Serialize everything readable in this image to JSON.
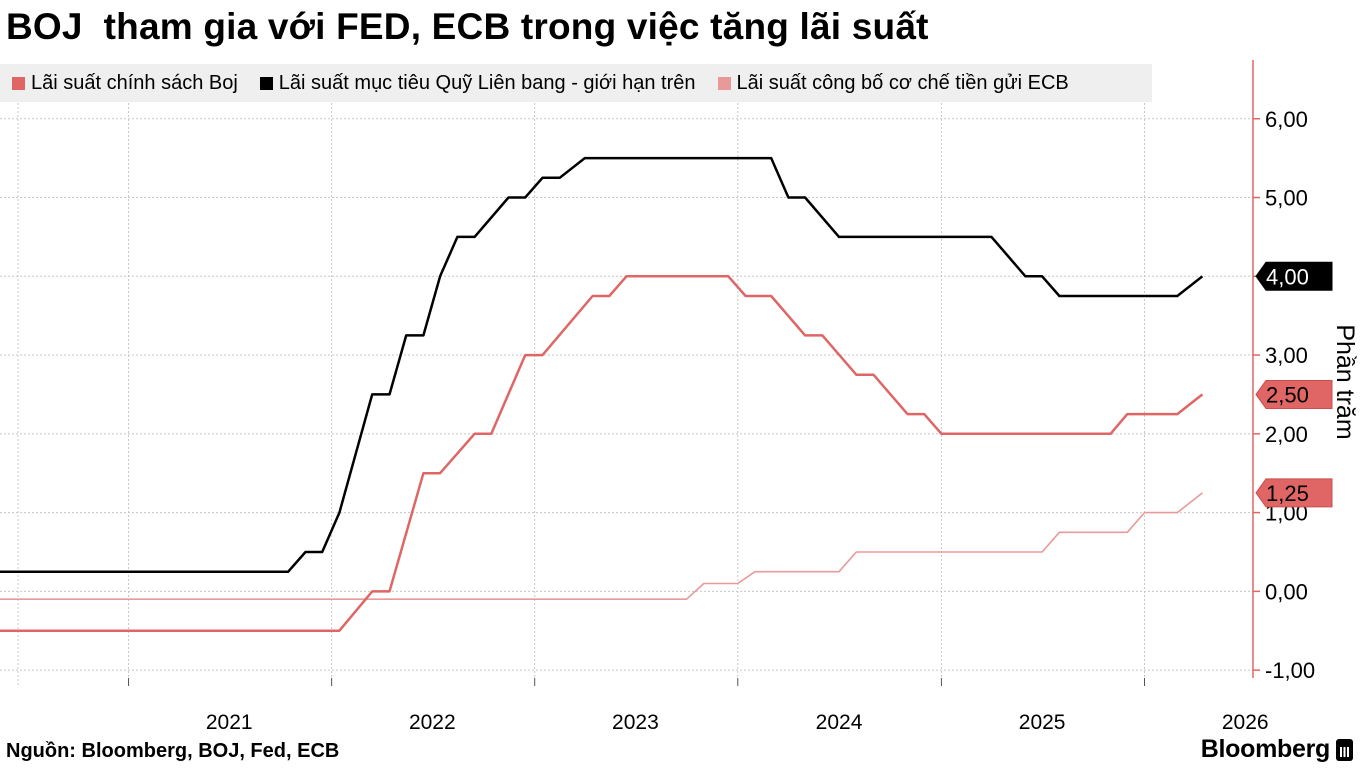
{
  "header": {
    "title": "BOJ  tham gia với FED, ECB trong việc tăng lãi suất"
  },
  "footer": {
    "source": "Nguồn: Bloomberg, BOJ, Fed, ECB",
    "brand": "Bloomberg"
  },
  "colors": {
    "boj": "#e06666",
    "fed": "#000000",
    "ecb": "#e89a9a",
    "axis": "#e06666",
    "grid": "#c8c8c8",
    "legend_bg": "#efefef"
  },
  "chart_data": {
    "type": "line",
    "title": "BOJ  tham gia với FED, ECB trong việc tăng lãi suất",
    "ylabel": "Phần trăm",
    "xlabel": "",
    "ylim": [
      -1.1,
      6.2
    ],
    "y_ticks": [
      -1,
      0,
      1,
      2,
      3,
      4,
      5,
      6
    ],
    "y_tick_labels": [
      "-1,00",
      "0,00",
      "1,00",
      "2,00",
      "3,00",
      "4,00",
      "5,00",
      "6,00"
    ],
    "x_ticks": [
      "2021",
      "2022",
      "2023",
      "2024",
      "2025",
      "2026"
    ],
    "xlim": [
      "2020-05-15",
      "2026-07-15"
    ],
    "legend_position": "top-left",
    "grid": true,
    "series": [
      {
        "name": "Lãi suất chính sách Boj",
        "key": "boj",
        "last_label": "2,50",
        "points": [
          [
            "2020-05-15",
            -0.5
          ],
          [
            "2022-01-15",
            -0.5
          ],
          [
            "2022-03-15",
            0.0
          ],
          [
            "2022-04-15",
            0.0
          ],
          [
            "2022-06-15",
            1.5
          ],
          [
            "2022-07-15",
            1.5
          ],
          [
            "2022-09-15",
            2.0
          ],
          [
            "2022-10-15",
            2.0
          ],
          [
            "2022-12-15",
            3.0
          ],
          [
            "2023-01-15",
            3.0
          ],
          [
            "2023-04-15",
            3.75
          ],
          [
            "2023-05-15",
            3.75
          ],
          [
            "2023-06-15",
            4.0
          ],
          [
            "2023-12-15",
            4.0
          ],
          [
            "2024-01-15",
            3.75
          ],
          [
            "2024-03-01",
            3.75
          ],
          [
            "2024-05-01",
            3.25
          ],
          [
            "2024-06-01",
            3.25
          ],
          [
            "2024-08-01",
            2.75
          ],
          [
            "2024-09-01",
            2.75
          ],
          [
            "2024-11-01",
            2.25
          ],
          [
            "2024-12-01",
            2.25
          ],
          [
            "2025-01-01",
            2.0
          ],
          [
            "2025-11-01",
            2.0
          ],
          [
            "2025-12-01",
            2.25
          ],
          [
            "2026-03-01",
            2.25
          ],
          [
            "2026-04-15",
            2.5
          ]
        ]
      },
      {
        "name": "Lãi suất mục tiêu Quỹ Liên bang - giới hạn trên",
        "key": "fed",
        "last_label": "4,00",
        "points": [
          [
            "2020-05-15",
            0.25
          ],
          [
            "2021-10-15",
            0.25
          ],
          [
            "2021-11-15",
            0.5
          ],
          [
            "2021-12-15",
            0.5
          ],
          [
            "2022-01-15",
            1.0
          ],
          [
            "2022-03-15",
            2.5
          ],
          [
            "2022-04-15",
            2.5
          ],
          [
            "2022-05-15",
            3.25
          ],
          [
            "2022-06-15",
            3.25
          ],
          [
            "2022-07-15",
            4.0
          ],
          [
            "2022-08-15",
            4.5
          ],
          [
            "2022-09-15",
            4.5
          ],
          [
            "2022-11-15",
            5.0
          ],
          [
            "2022-12-15",
            5.0
          ],
          [
            "2023-01-15",
            5.25
          ],
          [
            "2023-02-15",
            5.25
          ],
          [
            "2023-04-01",
            5.5
          ],
          [
            "2024-03-01",
            5.5
          ],
          [
            "2024-04-01",
            5.0
          ],
          [
            "2024-05-01",
            5.0
          ],
          [
            "2024-07-01",
            4.5
          ],
          [
            "2025-04-01",
            4.5
          ],
          [
            "2025-06-01",
            4.0
          ],
          [
            "2025-07-01",
            4.0
          ],
          [
            "2025-08-01",
            3.75
          ],
          [
            "2026-03-01",
            3.75
          ],
          [
            "2026-04-15",
            4.0
          ]
        ]
      },
      {
        "name": "Lãi suất công bố cơ chế tiền gửi ECB",
        "key": "ecb",
        "last_label": "1,25",
        "points": [
          [
            "2020-05-15",
            -0.1
          ],
          [
            "2023-10-01",
            -0.1
          ],
          [
            "2023-11-01",
            0.1
          ],
          [
            "2024-01-01",
            0.1
          ],
          [
            "2024-02-01",
            0.25
          ],
          [
            "2024-07-01",
            0.25
          ],
          [
            "2024-08-01",
            0.5
          ],
          [
            "2025-07-01",
            0.5
          ],
          [
            "2025-08-01",
            0.75
          ],
          [
            "2025-12-01",
            0.75
          ],
          [
            "2026-01-01",
            1.0
          ],
          [
            "2026-03-01",
            1.0
          ],
          [
            "2026-04-15",
            1.25
          ]
        ]
      }
    ]
  }
}
